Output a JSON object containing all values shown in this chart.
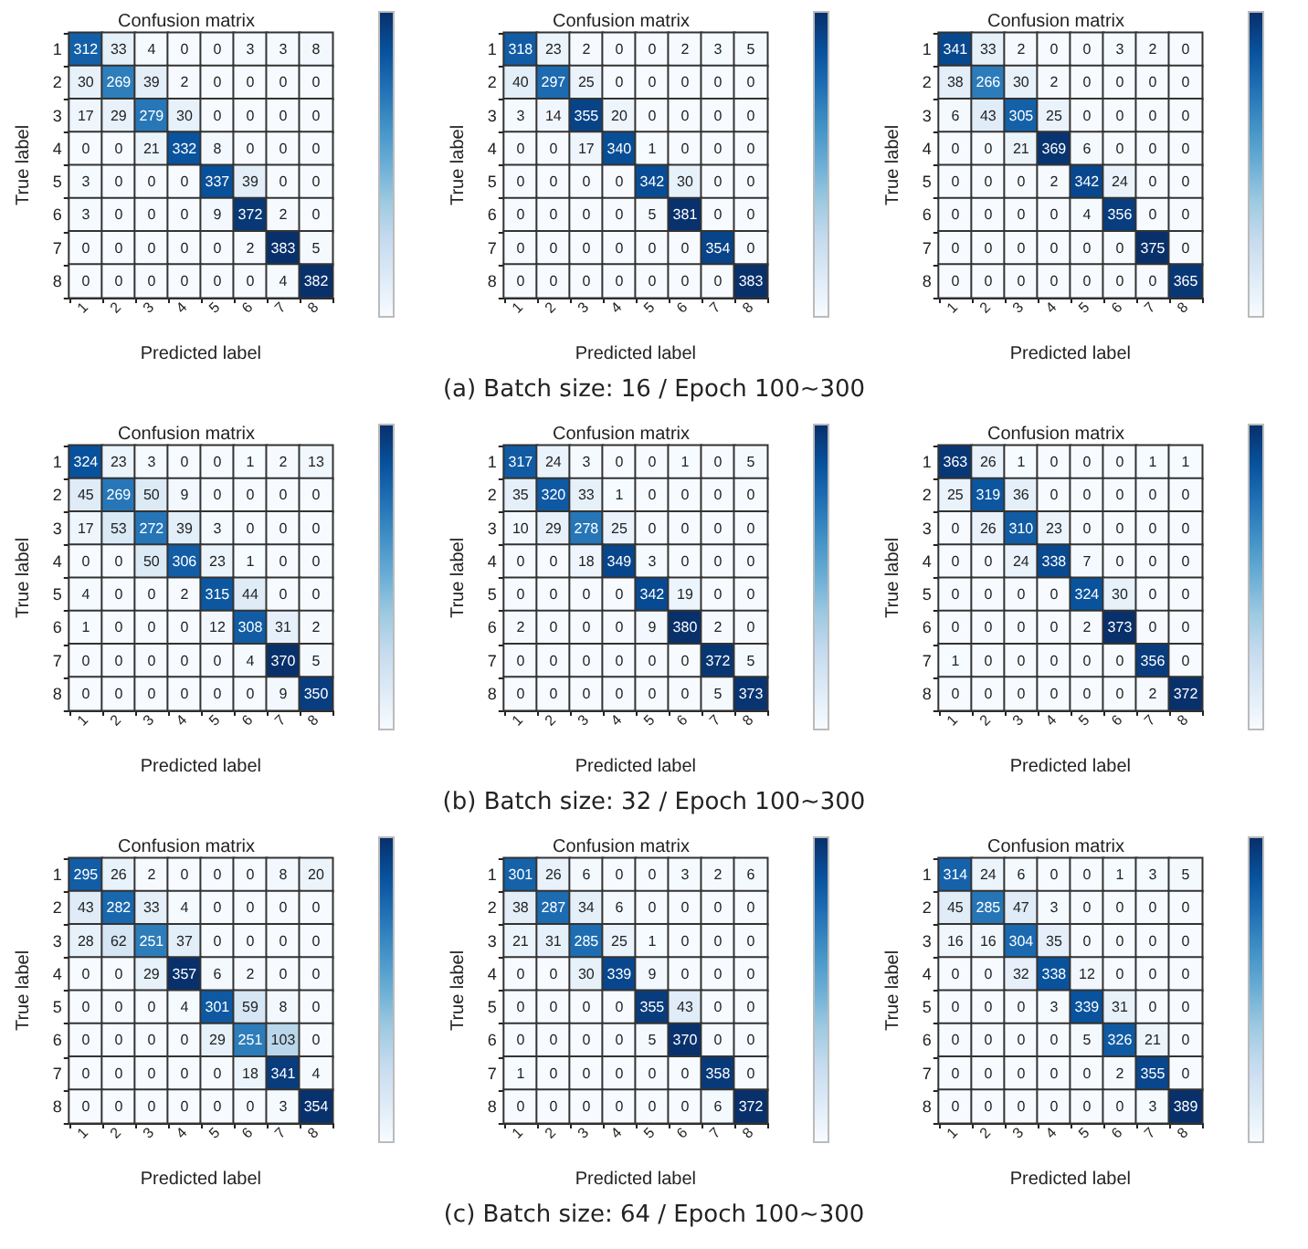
{
  "chart_data": [
    {
      "type": "heatmap",
      "title": "Confusion matrix",
      "xlabel": "Predicted label",
      "ylabel": "True label",
      "data_labels": true,
      "categories": [
        "1",
        "2",
        "3",
        "4",
        "5",
        "6",
        "7",
        "8"
      ],
      "y_categories": [
        "1",
        "2",
        "3",
        "4",
        "5",
        "6",
        "7",
        "8"
      ],
      "cells": [
        [
          312,
          33,
          4,
          0,
          0,
          3,
          3,
          8
        ],
        [
          30,
          269,
          39,
          2,
          0,
          0,
          0,
          0
        ],
        [
          17,
          29,
          279,
          30,
          0,
          0,
          0,
          0
        ],
        [
          0,
          0,
          21,
          332,
          8,
          0,
          0,
          0
        ],
        [
          3,
          0,
          0,
          0,
          337,
          39,
          0,
          0
        ],
        [
          3,
          0,
          0,
          0,
          9,
          372,
          2,
          0
        ],
        [
          0,
          0,
          0,
          0,
          0,
          2,
          383,
          5
        ],
        [
          0,
          0,
          0,
          0,
          0,
          0,
          4,
          382
        ]
      ]
    },
    {
      "type": "heatmap",
      "title": "Confusion matrix",
      "xlabel": "Predicted label",
      "ylabel": "True label",
      "categories": [
        "1",
        "2",
        "3",
        "4",
        "5",
        "6",
        "7",
        "8"
      ],
      "y_categories": [
        "1",
        "2",
        "3",
        "4",
        "5",
        "6",
        "7",
        "8"
      ],
      "data_labels": true,
      "annotations": [
        "(a)  Batch size: 16 / Epoch 100~300"
      ],
      "cells": [
        [
          318,
          23,
          2,
          0,
          0,
          2,
          3,
          5
        ],
        [
          40,
          297,
          25,
          0,
          0,
          0,
          0,
          0
        ],
        [
          3,
          14,
          355,
          20,
          0,
          0,
          0,
          0
        ],
        [
          0,
          0,
          17,
          340,
          1,
          0,
          0,
          0
        ],
        [
          0,
          0,
          0,
          0,
          342,
          30,
          0,
          0
        ],
        [
          0,
          0,
          0,
          0,
          5,
          381,
          0,
          0
        ],
        [
          0,
          0,
          0,
          0,
          0,
          0,
          354,
          0
        ],
        [
          0,
          0,
          0,
          0,
          0,
          0,
          0,
          383
        ]
      ]
    },
    {
      "type": "heatmap",
      "title": "Confusion matrix",
      "xlabel": "Predicted label",
      "ylabel": "True label",
      "categories": [
        "1",
        "2",
        "3",
        "4",
        "5",
        "6",
        "7",
        "8"
      ],
      "y_categories": [
        "1",
        "2",
        "3",
        "4",
        "5",
        "6",
        "7",
        "8"
      ],
      "data_labels": true,
      "cells": [
        [
          341,
          33,
          2,
          0,
          0,
          3,
          2,
          0
        ],
        [
          38,
          266,
          30,
          2,
          0,
          0,
          0,
          0
        ],
        [
          6,
          43,
          305,
          25,
          0,
          0,
          0,
          0
        ],
        [
          0,
          0,
          21,
          369,
          6,
          0,
          0,
          0
        ],
        [
          0,
          0,
          0,
          2,
          342,
          24,
          0,
          0
        ],
        [
          0,
          0,
          0,
          0,
          4,
          356,
          0,
          0
        ],
        [
          0,
          0,
          0,
          0,
          0,
          0,
          375,
          0
        ],
        [
          0,
          0,
          0,
          0,
          0,
          0,
          0,
          365
        ]
      ]
    },
    {
      "type": "heatmap",
      "title": "Confusion matrix",
      "xlabel": "Predicted label",
      "ylabel": "True label",
      "categories": [
        "1",
        "2",
        "3",
        "4",
        "5",
        "6",
        "7",
        "8"
      ],
      "y_categories": [
        "1",
        "2",
        "3",
        "4",
        "5",
        "6",
        "7",
        "8"
      ],
      "data_labels": true,
      "cells": [
        [
          324,
          23,
          3,
          0,
          0,
          1,
          2,
          13
        ],
        [
          45,
          269,
          50,
          9,
          0,
          0,
          0,
          0
        ],
        [
          17,
          53,
          272,
          39,
          3,
          0,
          0,
          0
        ],
        [
          0,
          0,
          50,
          306,
          23,
          1,
          0,
          0
        ],
        [
          4,
          0,
          0,
          2,
          315,
          44,
          0,
          0
        ],
        [
          1,
          0,
          0,
          0,
          12,
          308,
          31,
          2
        ],
        [
          0,
          0,
          0,
          0,
          0,
          4,
          370,
          5
        ],
        [
          0,
          0,
          0,
          0,
          0,
          0,
          9,
          350
        ]
      ]
    },
    {
      "type": "heatmap",
      "title": "Confusion matrix",
      "xlabel": "Predicted label",
      "ylabel": "True label",
      "categories": [
        "1",
        "2",
        "3",
        "4",
        "5",
        "6",
        "7",
        "8"
      ],
      "y_categories": [
        "1",
        "2",
        "3",
        "4",
        "5",
        "6",
        "7",
        "8"
      ],
      "data_labels": true,
      "annotations": [
        "(b)  Batch size: 32 / Epoch 100~300"
      ],
      "cells": [
        [
          317,
          24,
          3,
          0,
          0,
          1,
          0,
          5
        ],
        [
          35,
          320,
          33,
          1,
          0,
          0,
          0,
          0
        ],
        [
          10,
          29,
          278,
          25,
          0,
          0,
          0,
          0
        ],
        [
          0,
          0,
          18,
          349,
          3,
          0,
          0,
          0
        ],
        [
          0,
          0,
          0,
          0,
          342,
          19,
          0,
          0
        ],
        [
          2,
          0,
          0,
          0,
          9,
          380,
          2,
          0
        ],
        [
          0,
          0,
          0,
          0,
          0,
          0,
          372,
          5
        ],
        [
          0,
          0,
          0,
          0,
          0,
          0,
          5,
          373
        ]
      ]
    },
    {
      "type": "heatmap",
      "title": "Confusion matrix",
      "xlabel": "Predicted label",
      "ylabel": "True label",
      "categories": [
        "1",
        "2",
        "3",
        "4",
        "5",
        "6",
        "7",
        "8"
      ],
      "y_categories": [
        "1",
        "2",
        "3",
        "4",
        "5",
        "6",
        "7",
        "8"
      ],
      "data_labels": true,
      "cells": [
        [
          363,
          26,
          1,
          0,
          0,
          0,
          1,
          1
        ],
        [
          25,
          319,
          36,
          0,
          0,
          0,
          0,
          0
        ],
        [
          0,
          26,
          310,
          23,
          0,
          0,
          0,
          0
        ],
        [
          0,
          0,
          24,
          338,
          7,
          0,
          0,
          0
        ],
        [
          0,
          0,
          0,
          0,
          324,
          30,
          0,
          0
        ],
        [
          0,
          0,
          0,
          0,
          2,
          373,
          0,
          0
        ],
        [
          1,
          0,
          0,
          0,
          0,
          0,
          356,
          0
        ],
        [
          0,
          0,
          0,
          0,
          0,
          0,
          2,
          372
        ]
      ]
    },
    {
      "type": "heatmap",
      "title": "Confusion matrix",
      "xlabel": "Predicted label",
      "ylabel": "True label",
      "categories": [
        "1",
        "2",
        "3",
        "4",
        "5",
        "6",
        "7",
        "8"
      ],
      "y_categories": [
        "1",
        "2",
        "3",
        "4",
        "5",
        "6",
        "7",
        "8"
      ],
      "data_labels": true,
      "cells": [
        [
          295,
          26,
          2,
          0,
          0,
          0,
          8,
          20
        ],
        [
          43,
          282,
          33,
          4,
          0,
          0,
          0,
          0
        ],
        [
          28,
          62,
          251,
          37,
          0,
          0,
          0,
          0
        ],
        [
          0,
          0,
          29,
          357,
          6,
          2,
          0,
          0
        ],
        [
          0,
          0,
          0,
          4,
          301,
          59,
          8,
          0
        ],
        [
          0,
          0,
          0,
          0,
          29,
          251,
          103,
          0
        ],
        [
          0,
          0,
          0,
          0,
          0,
          18,
          341,
          4
        ],
        [
          0,
          0,
          0,
          0,
          0,
          0,
          3,
          354
        ]
      ]
    },
    {
      "type": "heatmap",
      "title": "Confusion matrix",
      "xlabel": "Predicted label",
      "ylabel": "True label",
      "categories": [
        "1",
        "2",
        "3",
        "4",
        "5",
        "6",
        "7",
        "8"
      ],
      "y_categories": [
        "1",
        "2",
        "3",
        "4",
        "5",
        "6",
        "7",
        "8"
      ],
      "data_labels": true,
      "annotations": [
        "(c)  Batch size: 64 / Epoch 100~300"
      ],
      "cells": [
        [
          301,
          26,
          6,
          0,
          0,
          3,
          2,
          6
        ],
        [
          38,
          287,
          34,
          6,
          0,
          0,
          0,
          0
        ],
        [
          21,
          31,
          285,
          25,
          1,
          0,
          0,
          0
        ],
        [
          0,
          0,
          30,
          339,
          9,
          0,
          0,
          0
        ],
        [
          0,
          0,
          0,
          0,
          355,
          43,
          0,
          0
        ],
        [
          0,
          0,
          0,
          0,
          5,
          370,
          0,
          0
        ],
        [
          1,
          0,
          0,
          0,
          0,
          0,
          358,
          0
        ],
        [
          0,
          0,
          0,
          0,
          0,
          0,
          6,
          372
        ]
      ]
    },
    {
      "type": "heatmap",
      "title": "Confusion matrix",
      "xlabel": "Predicted label",
      "ylabel": "True label",
      "categories": [
        "1",
        "2",
        "3",
        "4",
        "5",
        "6",
        "7",
        "8"
      ],
      "y_categories": [
        "1",
        "2",
        "3",
        "4",
        "5",
        "6",
        "7",
        "8"
      ],
      "data_labels": true,
      "cells": [
        [
          314,
          24,
          6,
          0,
          0,
          1,
          3,
          5
        ],
        [
          45,
          285,
          47,
          3,
          0,
          0,
          0,
          0
        ],
        [
          16,
          16,
          304,
          35,
          0,
          0,
          0,
          0
        ],
        [
          0,
          0,
          32,
          338,
          12,
          0,
          0,
          0
        ],
        [
          0,
          0,
          0,
          3,
          339,
          31,
          0,
          0
        ],
        [
          0,
          0,
          0,
          0,
          5,
          326,
          21,
          0
        ],
        [
          0,
          0,
          0,
          0,
          0,
          2,
          355,
          0
        ],
        [
          0,
          0,
          0,
          0,
          0,
          0,
          3,
          389
        ]
      ]
    }
  ]
}
